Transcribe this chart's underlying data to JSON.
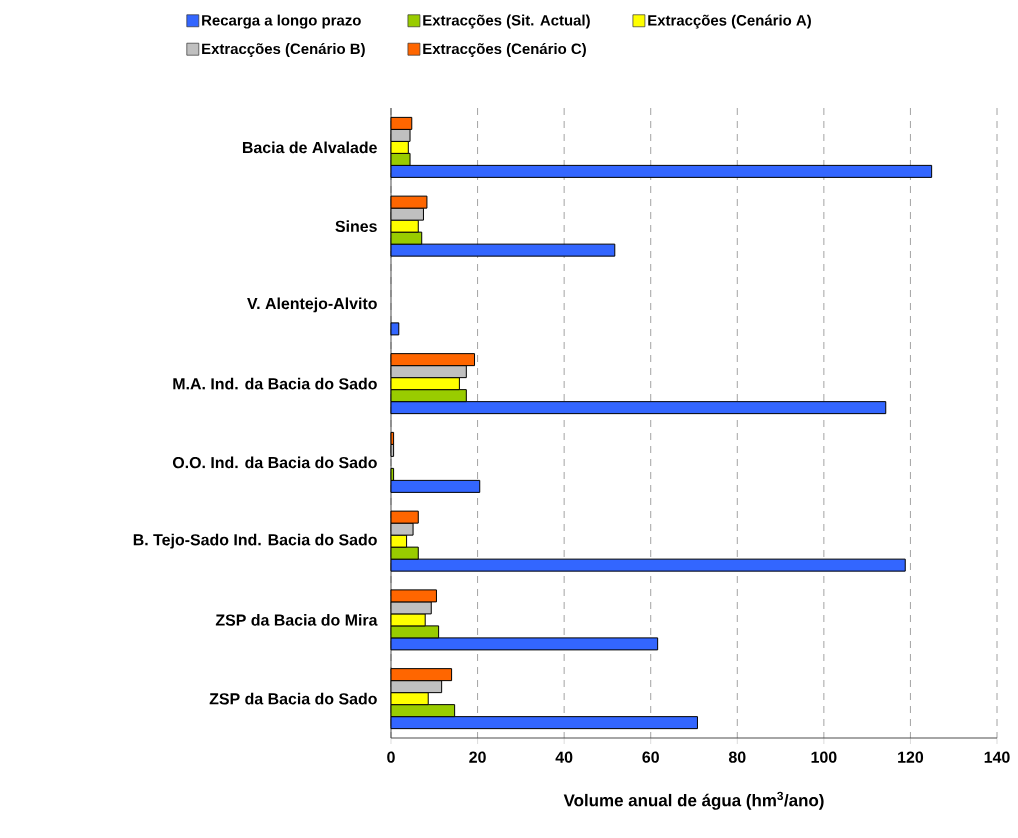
{
  "chart_data": {
    "type": "bar",
    "orientation": "horizontal",
    "categories": [
      "Bacia de Alvalade",
      "Sines",
      "V. Alentejo-Alvito",
      "M.A. Ind. da Bacia do Sado",
      "O.O. Ind. da Bacia do Sado",
      "B. Tejo-Sado Ind. Bacia do Sado",
      "ZSP da Bacia do Mira",
      "ZSP da Bacia do Sado"
    ],
    "series": [
      {
        "name": "Recarga a longo prazo",
        "color": "#3366ff",
        "values": [
          124.9,
          51.7,
          1.8,
          114.3,
          20.5,
          118.8,
          61.6,
          70.8
        ]
      },
      {
        "name": "Extracções (Sit. Actual)",
        "color": "#99cc00",
        "values": [
          4.4,
          7.1,
          null,
          17.4,
          0.6,
          6.3,
          11.0,
          14.7
        ]
      },
      {
        "name": "Extracções (Cenário A)",
        "color": "#ffff00",
        "values": [
          4.0,
          6.3,
          null,
          15.8,
          null,
          3.6,
          7.9,
          8.6
        ]
      },
      {
        "name": "Extracções (Cenário B)",
        "color": "#c0c0c0",
        "values": [
          4.4,
          7.5,
          null,
          17.4,
          0.6,
          5.1,
          9.3,
          11.7
        ]
      },
      {
        "name": "Extracções (Cenário C)",
        "color": "#ff6600",
        "values": [
          4.8,
          8.3,
          null,
          19.3,
          0.6,
          6.3,
          10.5,
          14.0
        ]
      }
    ],
    "xlabel": "Volume anual de água (hm$^{3}$/ano)",
    "xlim": [
      0,
      140
    ],
    "xticks": [
      0,
      20,
      40,
      60,
      80,
      100,
      120,
      140
    ],
    "grid": "x",
    "legend": "top"
  }
}
